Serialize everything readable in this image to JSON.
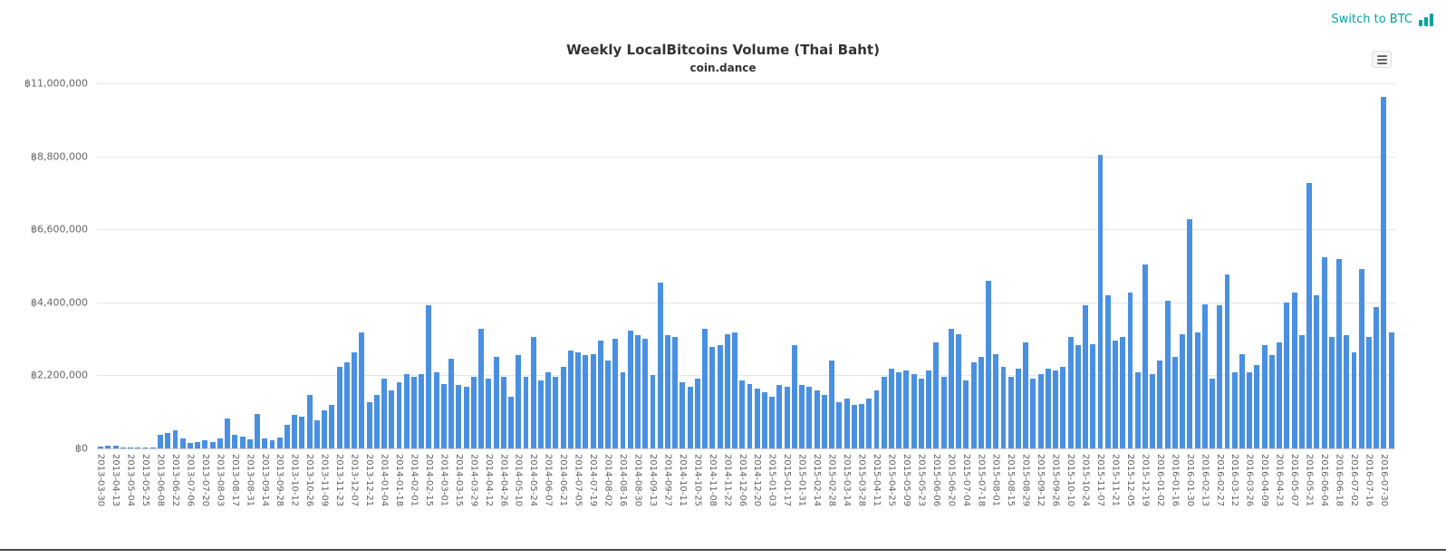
{
  "header": {
    "switch_link_label": "Switch to BTC",
    "accent_color": "#00a3a3"
  },
  "chart": {
    "title": "Weekly LocalBitcoins Volume (Thai Baht)",
    "subtitle": "coin.dance"
  },
  "chart_data": {
    "type": "bar",
    "title": "Weekly LocalBitcoins Volume (Thai Baht)",
    "subtitle": "coin.dance",
    "xlabel": "",
    "ylabel": "",
    "ylim": [
      0,
      11000000
    ],
    "grid": true,
    "legend": false,
    "bar_color": "#4a90e2",
    "y_tick_labels": [
      "฿11,000,000",
      "฿8,800,000",
      "฿6,600,000",
      "฿4,400,000",
      "฿2,200,000",
      "฿0"
    ],
    "label_step": 2,
    "x_tick_labels": [
      "2013-03-30",
      "2013-04-13",
      "2013-05-04",
      "2013-05-25",
      "2013-06-08",
      "2013-06-22",
      "2013-07-06",
      "2013-07-20",
      "2013-08-03",
      "2013-08-17",
      "2013-08-31",
      "2013-09-14",
      "2013-09-28",
      "2013-10-12",
      "2013-10-26",
      "2013-11-09",
      "2013-11-23",
      "2013-12-07",
      "2013-12-21",
      "2014-01-04",
      "2014-01-18",
      "2014-02-01",
      "2014-02-15",
      "2014-03-01",
      "2014-03-15",
      "2014-03-29",
      "2014-04-12",
      "2014-04-26",
      "2014-05-10",
      "2014-05-24",
      "2014-06-07",
      "2014-06-21",
      "2014-07-05",
      "2014-07-19",
      "2014-08-02",
      "2014-08-16",
      "2014-08-30",
      "2014-09-13",
      "2014-09-27",
      "2014-10-11",
      "2014-10-25",
      "2014-11-08",
      "2014-11-22",
      "2014-12-06",
      "2014-12-20",
      "2015-01-03",
      "2015-01-17",
      "2015-01-31",
      "2015-02-14",
      "2015-02-28",
      "2015-03-14",
      "2015-03-28",
      "2015-04-11",
      "2015-04-25",
      "2015-05-09",
      "2015-05-23",
      "2015-06-06",
      "2015-06-20",
      "2015-07-04",
      "2015-07-18",
      "2015-08-01",
      "2015-08-15",
      "2015-08-29",
      "2015-09-12",
      "2015-09-26",
      "2015-10-10",
      "2015-10-24",
      "2015-11-07",
      "2015-11-21",
      "2015-12-05",
      "2015-12-19",
      "2016-01-02",
      "2016-01-16",
      "2016-01-30",
      "2016-02-13",
      "2016-02-27",
      "2016-03-12",
      "2016-03-26",
      "2016-04-09",
      "2016-04-23",
      "2016-05-07",
      "2016-05-21",
      "2016-06-04",
      "2016-06-18",
      "2016-07-02",
      "2016-07-16",
      "2016-07-30"
    ],
    "values": [
      60000,
      85000,
      70000,
      30000,
      20000,
      15000,
      25000,
      40000,
      420000,
      470000,
      540000,
      300000,
      160000,
      180000,
      240000,
      200000,
      300000,
      900000,
      420000,
      350000,
      280000,
      1050000,
      300000,
      240000,
      320000,
      700000,
      1000000,
      950000,
      1600000,
      850000,
      1150000,
      1300000,
      2450000,
      2600000,
      2900000,
      3500000,
      1400000,
      1600000,
      2100000,
      1750000,
      2000000,
      2250000,
      2150000,
      2250000,
      4300000,
      2300000,
      1950000,
      2700000,
      1900000,
      1850000,
      2150000,
      3600000,
      2100000,
      2750000,
      2150000,
      1550000,
      2800000,
      2150000,
      3350000,
      2050000,
      2300000,
      2150000,
      2450000,
      2950000,
      2900000,
      2800000,
      2850000,
      3250000,
      2650000,
      3300000,
      2300000,
      3550000,
      3400000,
      3300000,
      2200000,
      5000000,
      3400000,
      3350000,
      2000000,
      1850000,
      2100000,
      3600000,
      3050000,
      3100000,
      3450000,
      3500000,
      2050000,
      1950000,
      1800000,
      1700000,
      1550000,
      1900000,
      1850000,
      3100000,
      1900000,
      1850000,
      1750000,
      1600000,
      2650000,
      1400000,
      1500000,
      1300000,
      1350000,
      1500000,
      1750000,
      2150000,
      2400000,
      2300000,
      2350000,
      2250000,
      2100000,
      2350000,
      3200000,
      2150000,
      3600000,
      3450000,
      2050000,
      2600000,
      2750000,
      5050000,
      2850000,
      2450000,
      2150000,
      2400000,
      3200000,
      2100000,
      2250000,
      2400000,
      2350000,
      2450000,
      3350000,
      3100000,
      4300000,
      3150000,
      8850000,
      4600000,
      3250000,
      3350000,
      4700000,
      2300000,
      5550000,
      2250000,
      2650000,
      4450000,
      2750000,
      3450000,
      6900000,
      3500000,
      4350000,
      2100000,
      4300000,
      5250000,
      2300000,
      2850000,
      2300000,
      2500000,
      3100000,
      2800000,
      3200000,
      4400000,
      4700000,
      3400000,
      8000000,
      4600000,
      5750000,
      3350000,
      5700000,
      3400000,
      2900000,
      5400000,
      3350000,
      4250000,
      10600000,
      3500000
    ]
  }
}
